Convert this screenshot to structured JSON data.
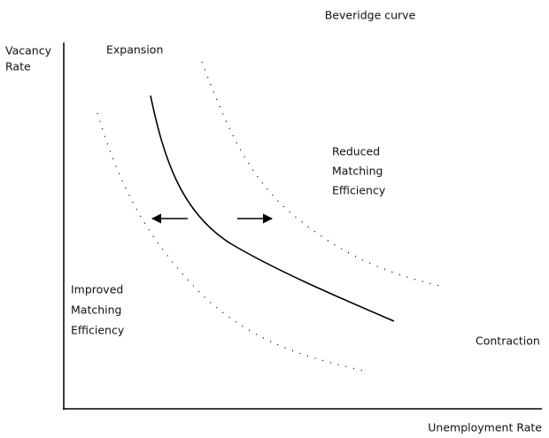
{
  "title": "Beveridge curve",
  "axes": {
    "y_label": [
      "Vacancy",
      "Rate"
    ],
    "x_label": "Unemployment Rate"
  },
  "regions": {
    "expansion": "Expansion",
    "contraction": "Contraction"
  },
  "curves": {
    "reduced": [
      "Reduced",
      "Matching",
      "Efficiency"
    ],
    "improved": [
      "Improved",
      "Matching",
      "Efficiency"
    ]
  }
}
